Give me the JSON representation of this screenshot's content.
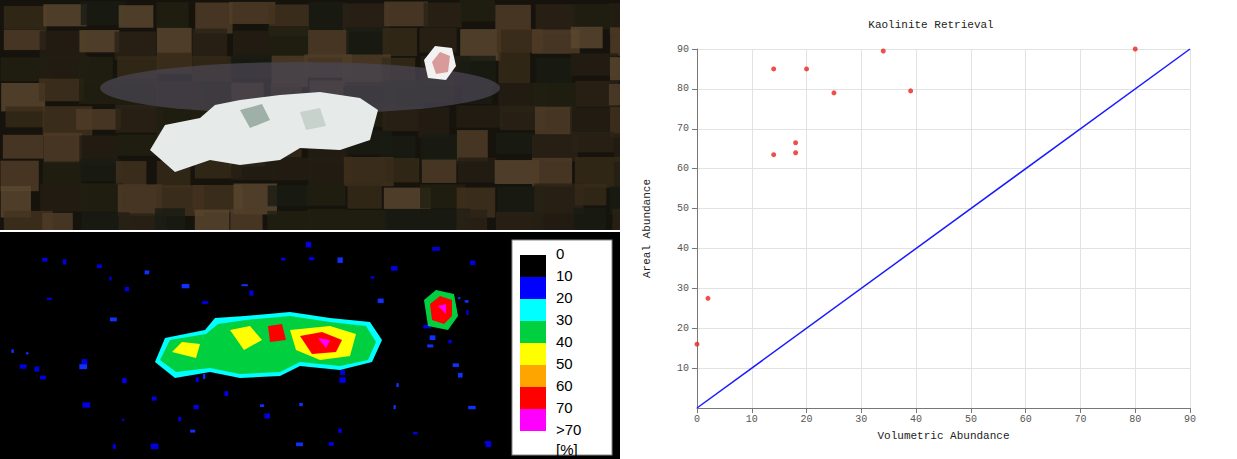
{
  "chart_data": {
    "type": "scatter",
    "title": "Kaolinite Retrieval",
    "x_label": "Volumetric Abundance",
    "y_label": "Areal Abundance",
    "xlim": [
      0,
      90
    ],
    "ylim": [
      0,
      90
    ],
    "xticks": [
      0,
      10,
      20,
      30,
      40,
      50,
      60,
      70,
      80,
      90
    ],
    "yticks": [
      10,
      20,
      30,
      40,
      50,
      60,
      70,
      80,
      90
    ],
    "grid": true,
    "series": [
      {
        "type": "scatter",
        "color": "#e8231e",
        "marker": "circle",
        "x": [
          0,
          2,
          14,
          14,
          18,
          18,
          20,
          25,
          34,
          39,
          80
        ],
        "values": [
          16,
          27.5,
          63.5,
          85,
          66.5,
          64,
          85,
          79,
          89.5,
          79.5,
          90
        ]
      },
      {
        "type": "line",
        "color": "#1a1aff",
        "line_style": "solid",
        "x": [
          0,
          90
        ],
        "values": [
          0,
          90
        ]
      }
    ]
  },
  "map_legend": {
    "labels": [
      0,
      10,
      20,
      30,
      40,
      50,
      60,
      70,
      ">70"
    ],
    "colors": [
      "#000000",
      "#0000ff",
      "#00ffff",
      "#00d040",
      "#ffff00",
      "#ffa500",
      "#ff0000",
      "#ff00ff"
    ],
    "unit": "[%]"
  }
}
